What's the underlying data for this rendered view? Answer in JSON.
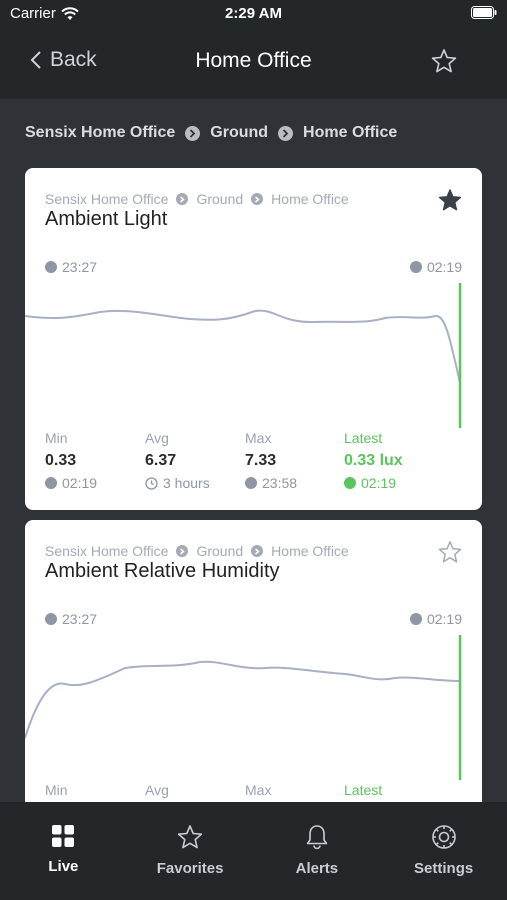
{
  "status": {
    "carrier": "Carrier",
    "time": "2:29 AM"
  },
  "nav": {
    "back_label": "Back",
    "title": "Home Office"
  },
  "breadcrumb": [
    "Sensix Home Office",
    "Ground",
    "Home Office"
  ],
  "cards": [
    {
      "crumbs": [
        "Sensix Home Office",
        "Ground",
        "Home Office"
      ],
      "title": "Ambient Light",
      "favorited": true,
      "start_time": "23:27",
      "end_time": "02:19",
      "stats": {
        "min": {
          "label": "Min",
          "value": "0.33",
          "sub": "02:19"
        },
        "avg": {
          "label": "Avg",
          "value": "6.37",
          "sub": "3 hours"
        },
        "max": {
          "label": "Max",
          "value": "7.33",
          "sub": "23:58"
        },
        "latest": {
          "label": "Latest",
          "value": "0.33 lux",
          "sub": "02:19"
        }
      }
    },
    {
      "crumbs": [
        "Sensix Home Office",
        "Ground",
        "Home Office"
      ],
      "title": "Ambient Relative Humidity",
      "favorited": false,
      "start_time": "23:27",
      "end_time": "02:19",
      "stats": {
        "min": {
          "label": "Min"
        },
        "avg": {
          "label": "Avg"
        },
        "max": {
          "label": "Max"
        },
        "latest": {
          "label": "Latest"
        }
      }
    }
  ],
  "tabs": [
    {
      "label": "Live",
      "icon": "grid-icon",
      "active": true
    },
    {
      "label": "Favorites",
      "icon": "star-icon",
      "active": false
    },
    {
      "label": "Alerts",
      "icon": "bell-icon",
      "active": false
    },
    {
      "label": "Settings",
      "icon": "gear-icon",
      "active": false
    }
  ],
  "colors": {
    "accent_green": "#5cc45c",
    "line": "#a9afc4",
    "bar_bg": "#23272a"
  }
}
